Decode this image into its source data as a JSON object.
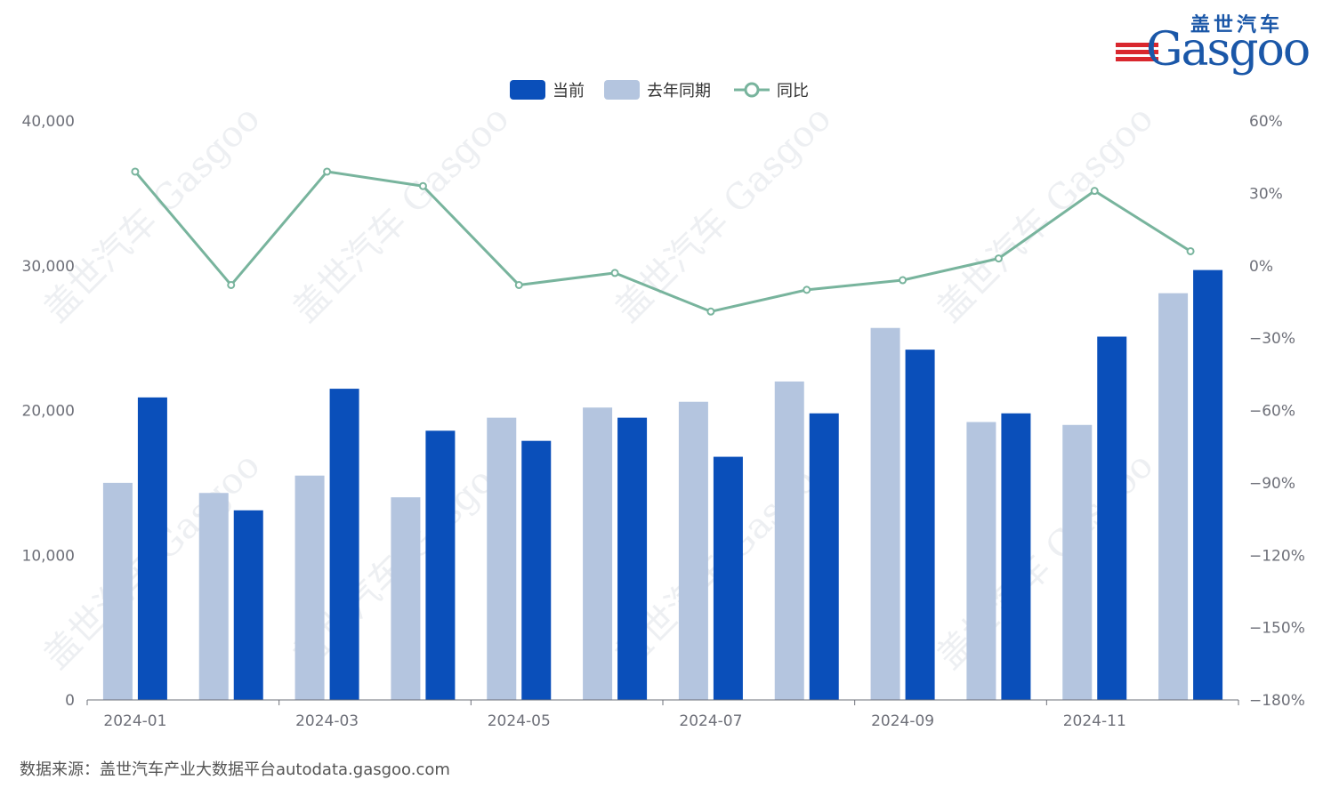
{
  "logo": {
    "cn": "盖世汽车",
    "en": "Gasgoo"
  },
  "legend": [
    {
      "label": "当前",
      "color": "#0a4fba",
      "kind": "bar"
    },
    {
      "label": "去年同期",
      "color": "#b4c5df",
      "kind": "bar"
    },
    {
      "label": "同比",
      "color": "#78b49d",
      "kind": "line"
    }
  ],
  "source": "数据来源：盖世汽车产业大数据平台autodata.gasgoo.com",
  "watermark": "盖世汽车 Gasgoo",
  "chart_data": {
    "type": "bar",
    "categories": [
      "2024-01",
      "2024-02",
      "2024-03",
      "2024-04",
      "2024-05",
      "2024-06",
      "2024-07",
      "2024-08",
      "2024-09",
      "2024-10",
      "2024-11",
      "2024-12"
    ],
    "xtick_labels": [
      "2024-01",
      "2024-03",
      "2024-05",
      "2024-07",
      "2024-09",
      "2024-11"
    ],
    "series": [
      {
        "name": "去年同期",
        "type": "bar",
        "axis": "left",
        "color": "#b4c5df",
        "values": [
          15000,
          14300,
          15500,
          14000,
          19500,
          20200,
          20600,
          22000,
          25700,
          19200,
          19000,
          28100
        ]
      },
      {
        "name": "当前",
        "type": "bar",
        "axis": "left",
        "color": "#0a4fba",
        "values": [
          20900,
          13100,
          21500,
          18600,
          17900,
          19500,
          16800,
          19800,
          24200,
          19800,
          25100,
          29700
        ]
      },
      {
        "name": "同比",
        "type": "line",
        "axis": "right",
        "color": "#78b49d",
        "values": [
          39,
          -8,
          39,
          33,
          -8,
          -3,
          -19,
          -10,
          -6,
          3,
          31,
          6
        ]
      }
    ],
    "left_axis": {
      "min": 0,
      "max": 40000,
      "ticks": [
        0,
        10000,
        20000,
        30000,
        40000
      ],
      "tick_labels": [
        "0",
        "10,000",
        "20,000",
        "30,000",
        "40,000"
      ]
    },
    "right_axis": {
      "min": -180,
      "max": 60,
      "ticks": [
        -180,
        -150,
        -120,
        -90,
        -60,
        -30,
        0,
        30,
        60
      ],
      "tick_labels": [
        "−180%",
        "−150%",
        "−120%",
        "−90%",
        "−60%",
        "−30%",
        "0%",
        "30%",
        "60%"
      ]
    }
  }
}
